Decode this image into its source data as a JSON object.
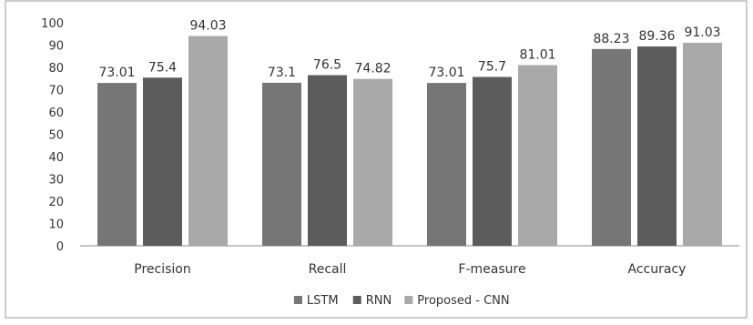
{
  "chart_data": {
    "type": "bar",
    "title": "",
    "xlabel": "",
    "ylabel": "",
    "ylim": [
      0,
      100
    ],
    "yticks": [
      0,
      10,
      20,
      30,
      40,
      50,
      60,
      70,
      80,
      90,
      100
    ],
    "grid": false,
    "legend_position": "bottom",
    "categories": [
      "Precision",
      "Recall",
      "F-measure",
      "Accuracy"
    ],
    "series": [
      {
        "name": "LSTM",
        "color": "#767676",
        "values": [
          73.01,
          73.1,
          73.01,
          88.23
        ],
        "labels": [
          "73.01",
          "73.1",
          "73.01",
          "88.23"
        ]
      },
      {
        "name": "RNN",
        "color": "#5c5c5c",
        "values": [
          75.4,
          76.5,
          75.7,
          89.36
        ],
        "labels": [
          "75.4",
          "76.5",
          "75.7",
          "89.36"
        ]
      },
      {
        "name": "Proposed - CNN",
        "color": "#a9a9a9",
        "values": [
          94.03,
          74.82,
          81.01,
          91.03
        ],
        "labels": [
          "94.03",
          "74.82",
          "81.01",
          "91.03"
        ]
      }
    ]
  }
}
